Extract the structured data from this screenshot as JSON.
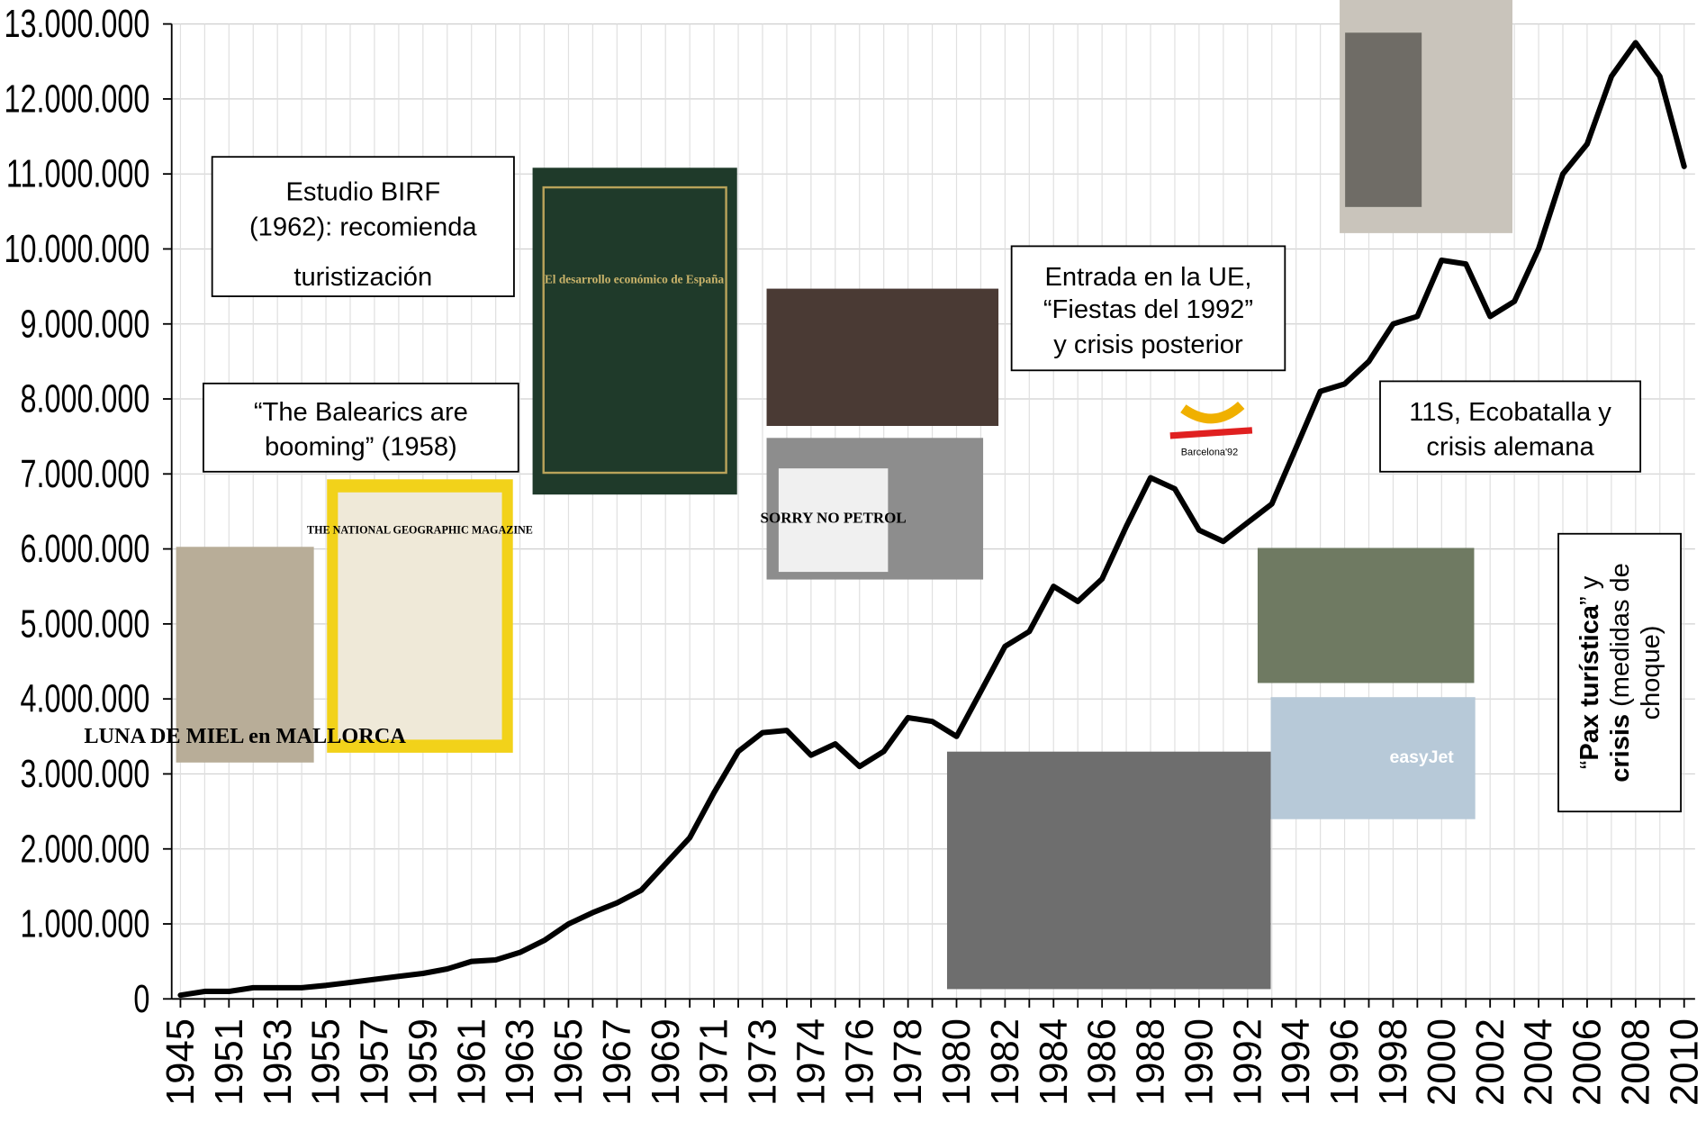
{
  "chart_data": {
    "type": "line",
    "categories": [
      "1945",
      null,
      "1951",
      null,
      "1953",
      null,
      "1955",
      null,
      "1957",
      null,
      "1959",
      null,
      "1961",
      null,
      "1963",
      null,
      "1965",
      null,
      "1967",
      null,
      "1969",
      null,
      "1971",
      null,
      "1973",
      null,
      "1974",
      null,
      "1976",
      null,
      "1978",
      null,
      "1980",
      null,
      "1982",
      null,
      "1984",
      null,
      "1986",
      null,
      "1988",
      null,
      "1990",
      null,
      "1992",
      null,
      "1994",
      null,
      "1996",
      null,
      "1998",
      null,
      "2000",
      null,
      "2002",
      null,
      "2004",
      null,
      "2006",
      null,
      "2008",
      null,
      "2010"
    ],
    "values": [
      50000,
      100000,
      100000,
      150000,
      150000,
      150000,
      180000,
      220000,
      260000,
      300000,
      340000,
      400000,
      500000,
      520000,
      620000,
      780000,
      1000000,
      1150000,
      1280000,
      1450000,
      1800000,
      2150000,
      2750000,
      3300000,
      3550000,
      3580000,
      3250000,
      3400000,
      3100000,
      3300000,
      3750000,
      3700000,
      3500000,
      4100000,
      4700000,
      4900000,
      5500000,
      5300000,
      5600000,
      6300000,
      6950000,
      6800000,
      6250000,
      6100000,
      6350000,
      6600000,
      7350000,
      8100000,
      8200000,
      8500000,
      9000000,
      9100000,
      9850000,
      9800000,
      9100000,
      9300000,
      10000000,
      11000000,
      11400000,
      12300000,
      12750000,
      12300000,
      11100000
    ],
    "color": "#000000",
    "ylim": [
      0,
      13000000
    ],
    "yticks": [
      {
        "value": 0,
        "label": "0"
      },
      {
        "value": 1000000,
        "label": "1.000.000"
      },
      {
        "value": 2000000,
        "label": "2.000.000"
      },
      {
        "value": 3000000,
        "label": "3.000.000"
      },
      {
        "value": 4000000,
        "label": "4.000.000"
      },
      {
        "value": 5000000,
        "label": "5.000.000"
      },
      {
        "value": 6000000,
        "label": "6.000.000"
      },
      {
        "value": 7000000,
        "label": "7.000.000"
      },
      {
        "value": 8000000,
        "label": "8.000.000"
      },
      {
        "value": 9000000,
        "label": "9.000.000"
      },
      {
        "value": 10000000,
        "label": "10.000.000"
      },
      {
        "value": 11000000,
        "label": "11.000.000"
      },
      {
        "value": 12000000,
        "label": "12.000.000"
      },
      {
        "value": 13000000,
        "label": "13.000.000"
      }
    ],
    "grid": true,
    "annotations": [
      {
        "lines": [
          "Estudio BIRF",
          "(1962): recomienda",
          "turistización"
        ]
      },
      {
        "lines": [
          "“The Balearics are",
          "booming” (1958)"
        ]
      },
      {
        "lines": [
          "Entrada en la UE,",
          "“Fiestas del 1992”",
          "y crisis posterior"
        ]
      },
      {
        "lines": [
          "11S, Ecobatalla y",
          "crisis alemana"
        ]
      },
      {
        "lines": [
          [
            {
              "text": "“"
            },
            {
              "text": "Pax turística",
              "bold": true
            },
            {
              "text": "” y"
            }
          ],
          [
            {
              "text": "crisis",
              "bold": true
            },
            {
              "text": " (medidas de"
            }
          ],
          [
            {
              "text": "choque)"
            }
          ]
        ]
      }
    ],
    "photo_texts": [
      "LUNA DE MIEL en MALLORCA",
      "THE NATIONAL GEOGRAPHIC MAGAZINE",
      "El desarrollo económico de España",
      "SORRY NO PETROL",
      "Barcelona'92",
      "easyJet"
    ]
  }
}
